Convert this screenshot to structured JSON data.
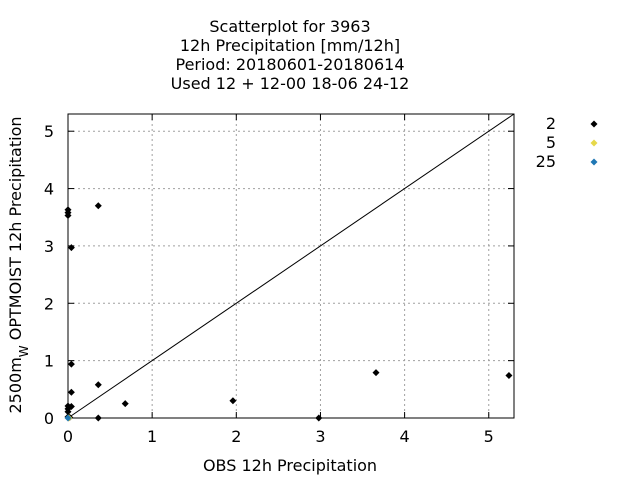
{
  "chart_data": {
    "type": "scatter",
    "title_lines": [
      "Scatterplot for     3963",
      "12h Precipitation [mm/12h]",
      "Period: 20180601-20180614",
      "Used  12 + 12-00 18-06 24-12"
    ],
    "xlabel": "OBS 12h Precipitation",
    "ylabel": "2500m",
    "ylabel_sub": "W",
    "ylabel_rest": " OPTMOIST 12h Precipitation",
    "xlim": [
      0,
      5.3
    ],
    "ylim": [
      0,
      5.3
    ],
    "xticks": [
      0,
      1,
      2,
      3,
      4,
      5
    ],
    "yticks": [
      0,
      1,
      2,
      3,
      4,
      5
    ],
    "grid": true,
    "diagonal_line": true,
    "legend_position": "right",
    "series": [
      {
        "name": "2",
        "color": "#000000",
        "points": [
          [
            0,
            3.63
          ],
          [
            0,
            3.58
          ],
          [
            0,
            3.53
          ],
          [
            0.04,
            2.97
          ],
          [
            0.36,
            3.7
          ],
          [
            0.04,
            0.94
          ],
          [
            0.04,
            0.45
          ],
          [
            0.36,
            0.58
          ],
          [
            0.04,
            0.2
          ],
          [
            0,
            0.21
          ],
          [
            0,
            0.16
          ],
          [
            0,
            0.11
          ],
          [
            0,
            0.02
          ],
          [
            0.02,
            0.01
          ],
          [
            0.36,
            0.0
          ],
          [
            0.68,
            0.25
          ],
          [
            1.96,
            0.3
          ],
          [
            2.98,
            0.0
          ],
          [
            3.66,
            0.79
          ],
          [
            5.24,
            0.74
          ]
        ]
      },
      {
        "name": "5",
        "color": "#e6d84a",
        "points": [
          [
            0.01,
            0.0
          ]
        ]
      },
      {
        "name": "25",
        "color": "#1f77b4",
        "points": [
          [
            0,
            0.0
          ]
        ]
      }
    ]
  }
}
